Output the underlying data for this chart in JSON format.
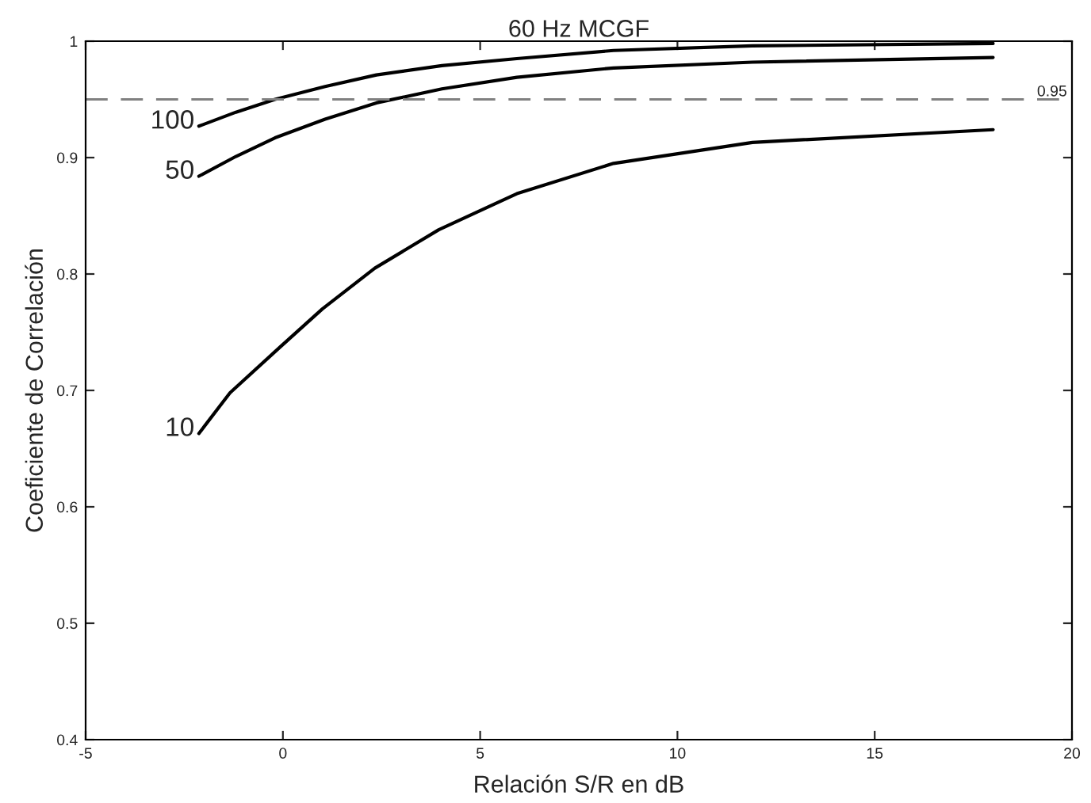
{
  "chart_data": {
    "type": "line",
    "title": "60 Hz MCGF",
    "xlabel": "Relación S/R en dB",
    "ylabel": "Coeficiente de Correlación",
    "xlim": [
      -5,
      20
    ],
    "xticks": [
      -5,
      0,
      5,
      10,
      15,
      20
    ],
    "ylim": [
      0.4,
      1
    ],
    "yticks": [
      0.4,
      0.5,
      0.6,
      0.7,
      0.8,
      0.9,
      1
    ],
    "grid": false,
    "legend": false,
    "line_style": "solid",
    "marker": "none",
    "ref_lines": [
      {
        "axis": "y",
        "value": 0.95,
        "label": "0.95",
        "color": "#808080",
        "line_style": "dashed"
      }
    ],
    "series": [
      {
        "name": "100",
        "color": "#000000",
        "x": [
          -2.13,
          -1.19,
          -0.2,
          1.07,
          2.37,
          4.03,
          5.93,
          8.38,
          11.9,
          18.0
        ],
        "values": [
          0.927,
          0.939,
          0.95,
          0.961,
          0.971,
          0.979,
          0.985,
          0.992,
          0.996,
          0.998
        ]
      },
      {
        "name": "50",
        "color": "#000000",
        "x": [
          -2.13,
          -1.19,
          -0.2,
          1.07,
          2.37,
          4.03,
          5.93,
          8.38,
          11.9,
          18.0
        ],
        "values": [
          0.884,
          0.901,
          0.917,
          0.933,
          0.947,
          0.959,
          0.969,
          0.977,
          0.982,
          0.986
        ]
      },
      {
        "name": "10",
        "color": "#000000",
        "x": [
          -2.13,
          -1.34,
          -0.08,
          1.0,
          2.33,
          3.95,
          5.93,
          8.38,
          11.9,
          18.0
        ],
        "values": [
          0.663,
          0.698,
          0.737,
          0.77,
          0.805,
          0.838,
          0.869,
          0.895,
          0.913,
          0.924
        ]
      }
    ]
  }
}
